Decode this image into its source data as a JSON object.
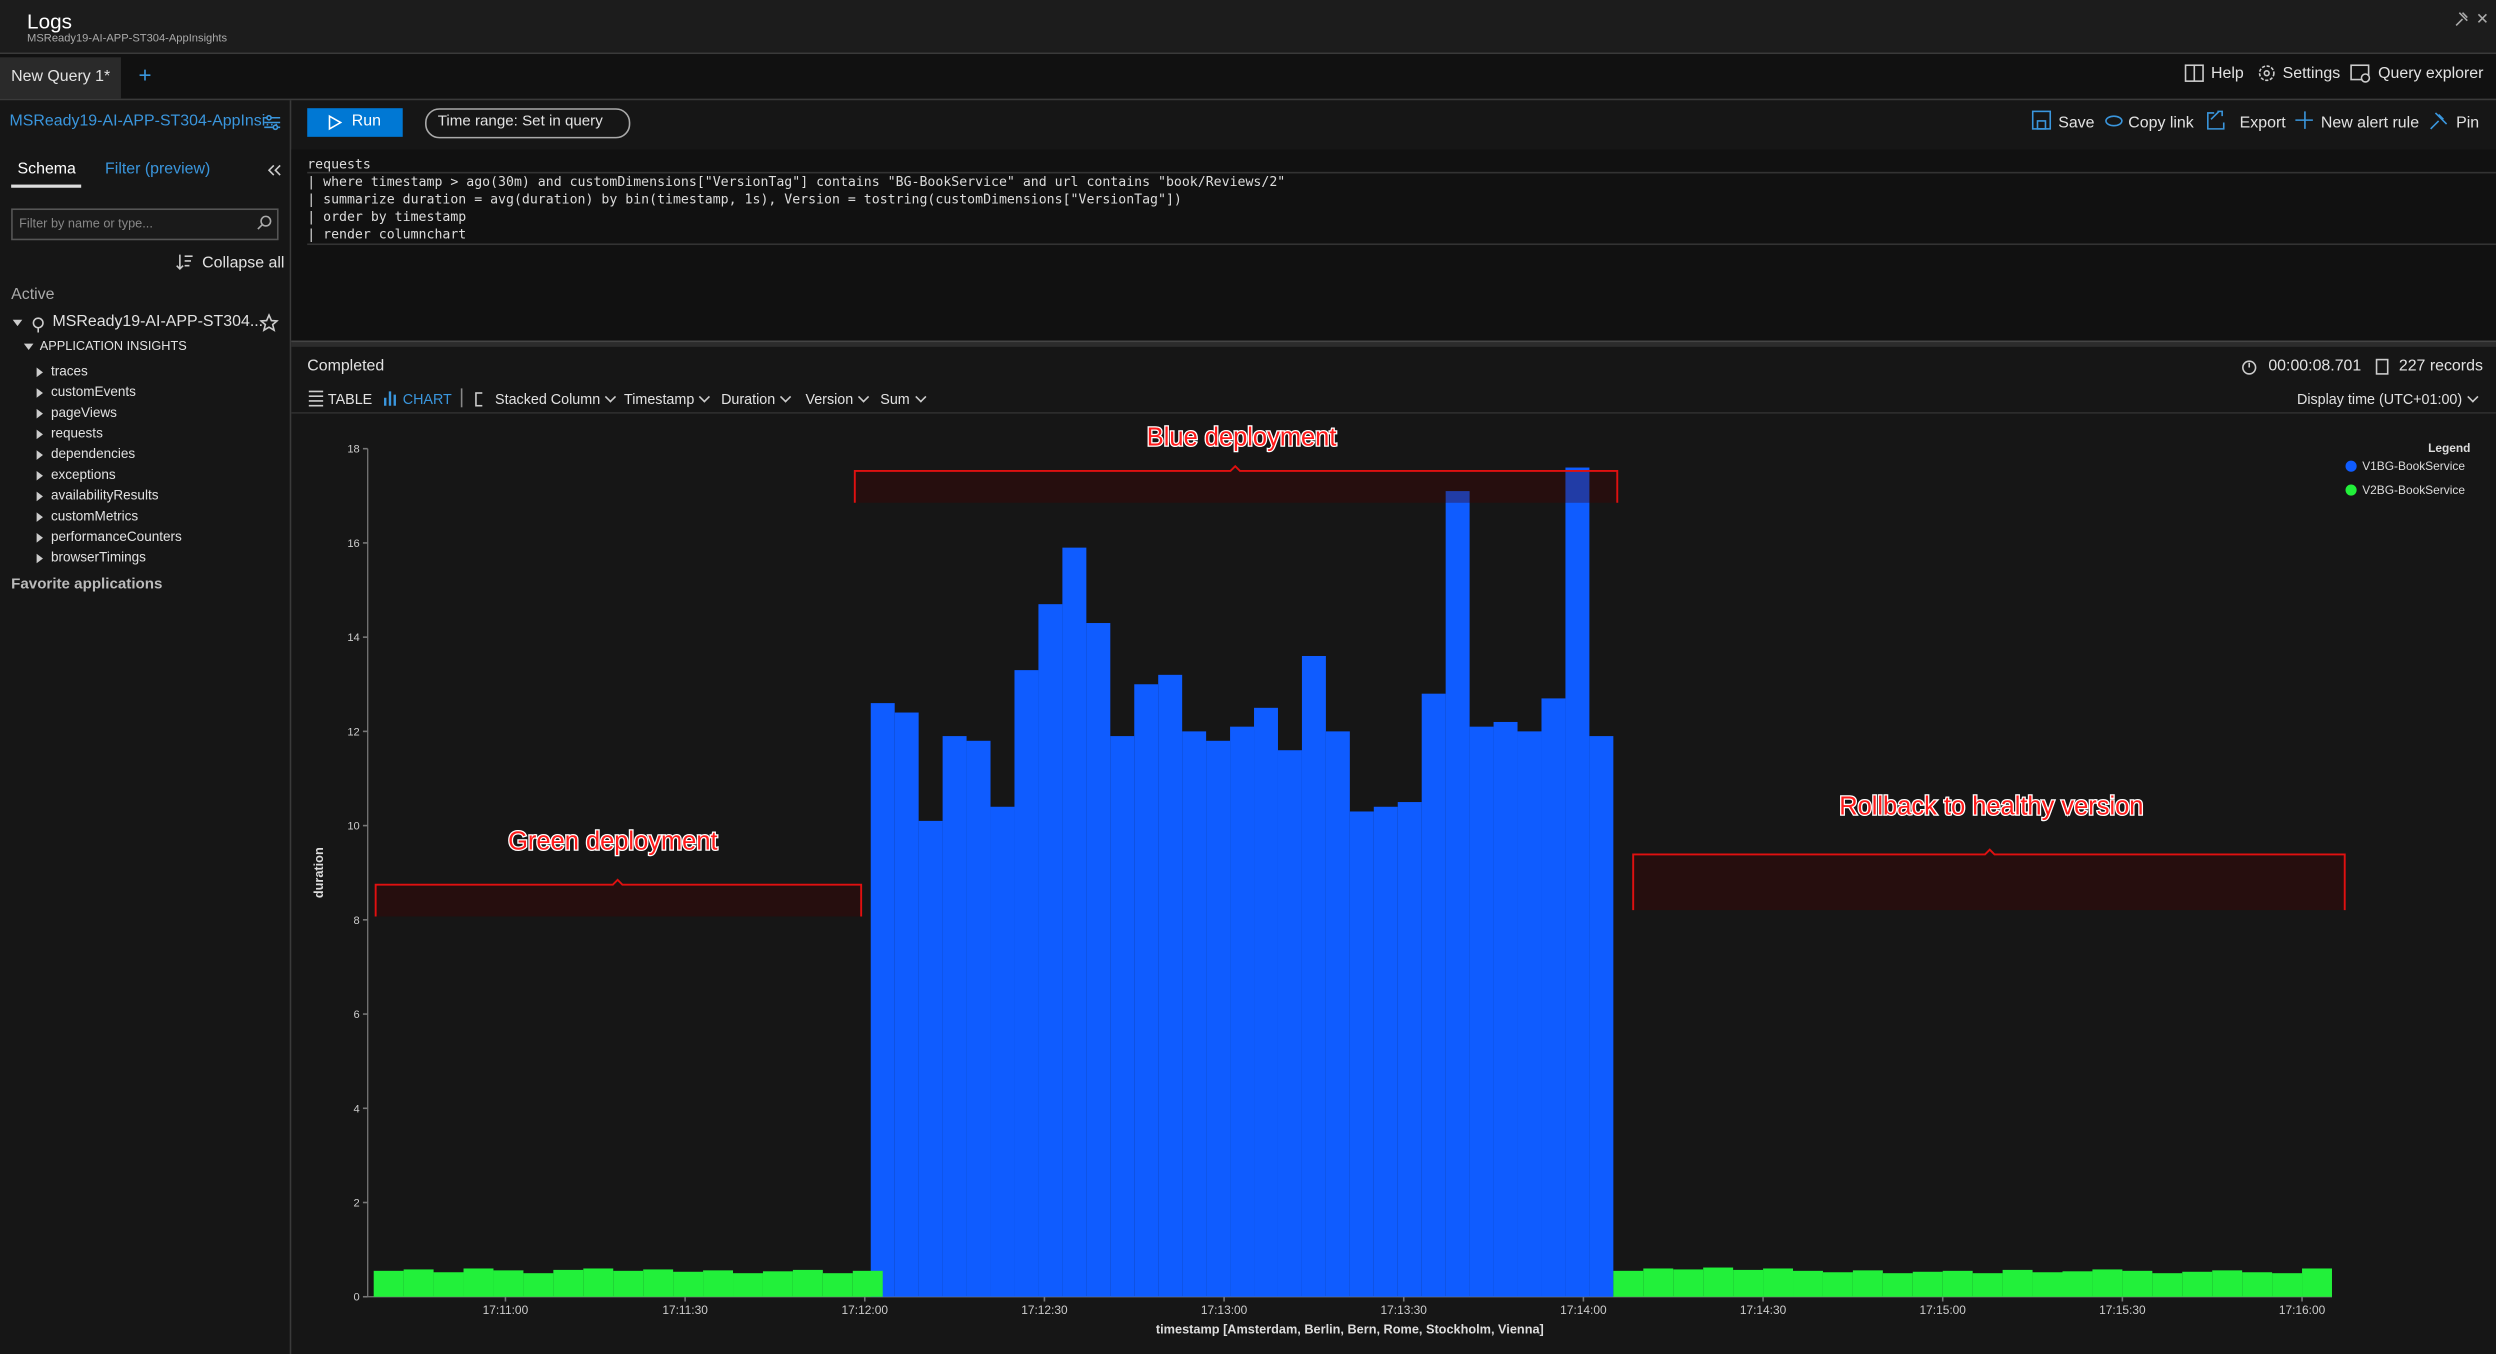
{
  "header": {
    "title": "Logs",
    "subtitle": "MSReady19-AI-APP-ST304-AppInsights"
  },
  "tabs": {
    "active": "New Query 1*",
    "add": "+"
  },
  "top_actions": [
    "Help",
    "Settings",
    "Query explorer"
  ],
  "scope": "MSReady19-AI-APP-ST304-AppInsi...",
  "run": "Run",
  "time_range": "Time range: Set in query",
  "query_actions": [
    "Save",
    "Copy link",
    "Export",
    "New alert rule",
    "Pin"
  ],
  "sidebar": {
    "tabs": [
      "Schema",
      "Filter (preview)"
    ],
    "search_placeholder": "Filter by name or type...",
    "collapse": "Collapse all",
    "active_label": "Active",
    "resource": "MSReady19-AI-APP-ST304...",
    "group": "APPLICATION INSIGHTS",
    "tables": [
      "traces",
      "customEvents",
      "pageViews",
      "requests",
      "dependencies",
      "exceptions",
      "availabilityResults",
      "customMetrics",
      "performanceCounters",
      "browserTimings"
    ],
    "favorites": "Favorite applications"
  },
  "query": {
    "lines": [
      "requests",
      "| where timestamp  > ago(30m) and customDimensions[\"VersionTag\"] contains \"BG-BookService\" and url contains \"book/Reviews/2\"",
      "| summarize duration = avg(duration) by bin(timestamp, 1s), Version = tostring(customDimensions[\"VersionTag\"])",
      "| order by timestamp",
      "| render columnchart"
    ]
  },
  "results": {
    "status": "Completed",
    "duration": "00:00:08.701",
    "records": "227 records",
    "views": [
      "TABLE",
      "CHART"
    ],
    "options": [
      "Stacked Column",
      "Timestamp",
      "Duration",
      "Version",
      "Sum"
    ],
    "display_time": "Display time (UTC+01:00)"
  },
  "chart_data": {
    "type": "bar",
    "stacked": true,
    "xlabel": "timestamp [Amsterdam, Berlin, Bern, Rome, Stockholm, Vienna]",
    "ylabel": "duration",
    "xlim": [
      "17:10:37",
      "17:16:05"
    ],
    "xticks": [
      "17:11:00",
      "17:11:30",
      "17:12:00",
      "17:12:30",
      "17:13:00",
      "17:13:30",
      "17:14:00",
      "17:14:30",
      "17:15:00",
      "17:15:30",
      "17:16:00"
    ],
    "ylim": [
      0,
      18
    ],
    "yticks": [
      0,
      2,
      4,
      6,
      8,
      10,
      12,
      14,
      16,
      18
    ],
    "grid": false,
    "legend_title": "Legend",
    "legend": "top-right",
    "annotations": [
      "Green deployment",
      "Blue deployment",
      "Rollback to healthy version"
    ],
    "series": [
      {
        "name": "V1BG-BookService",
        "color": "#0f5cff",
        "x": [
          "17:12:01",
          "17:12:05",
          "17:12:09",
          "17:12:13",
          "17:12:17",
          "17:12:21",
          "17:12:25",
          "17:12:29",
          "17:12:33",
          "17:12:37",
          "17:12:41",
          "17:12:45",
          "17:12:49",
          "17:12:53",
          "17:12:57",
          "17:13:01",
          "17:13:05",
          "17:13:09",
          "17:13:13",
          "17:13:17",
          "17:13:21",
          "17:13:25",
          "17:13:29",
          "17:13:33",
          "17:13:37",
          "17:13:41",
          "17:13:45",
          "17:13:49",
          "17:13:53",
          "17:13:57",
          "17:14:01"
        ],
        "values": [
          12.6,
          12.4,
          10.1,
          11.9,
          11.8,
          10.4,
          13.3,
          14.7,
          15.9,
          14.3,
          11.9,
          13.0,
          13.2,
          12.0,
          11.8,
          12.1,
          12.5,
          11.6,
          13.6,
          12.0,
          10.3,
          10.4,
          10.5,
          12.8,
          17.1,
          12.1,
          12.2,
          12.0,
          12.7,
          17.6,
          11.9
        ]
      },
      {
        "name": "V2BG-BookService",
        "color": "#22f03a",
        "x": [
          "17:10:38",
          "17:10:43",
          "17:10:48",
          "17:10:53",
          "17:10:58",
          "17:11:03",
          "17:11:08",
          "17:11:13",
          "17:11:18",
          "17:11:23",
          "17:11:28",
          "17:11:33",
          "17:11:38",
          "17:11:43",
          "17:11:48",
          "17:11:53",
          "17:11:58",
          "17:14:05",
          "17:14:10",
          "17:14:15",
          "17:14:20",
          "17:14:25",
          "17:14:30",
          "17:14:35",
          "17:14:40",
          "17:14:45",
          "17:14:50",
          "17:14:55",
          "17:15:00",
          "17:15:05",
          "17:15:10",
          "17:15:15",
          "17:15:20",
          "17:15:25",
          "17:15:30",
          "17:15:35",
          "17:15:40",
          "17:15:45",
          "17:15:50",
          "17:15:55",
          "17:16:00"
        ],
        "values": [
          0.55,
          0.58,
          0.52,
          0.6,
          0.56,
          0.5,
          0.57,
          0.6,
          0.55,
          0.58,
          0.53,
          0.56,
          0.5,
          0.54,
          0.57,
          0.5,
          0.55,
          0.55,
          0.6,
          0.58,
          0.62,
          0.57,
          0.6,
          0.55,
          0.52,
          0.56,
          0.5,
          0.53,
          0.55,
          0.5,
          0.57,
          0.52,
          0.54,
          0.58,
          0.55,
          0.5,
          0.53,
          0.56,
          0.52,
          0.5,
          0.6
        ]
      }
    ]
  }
}
